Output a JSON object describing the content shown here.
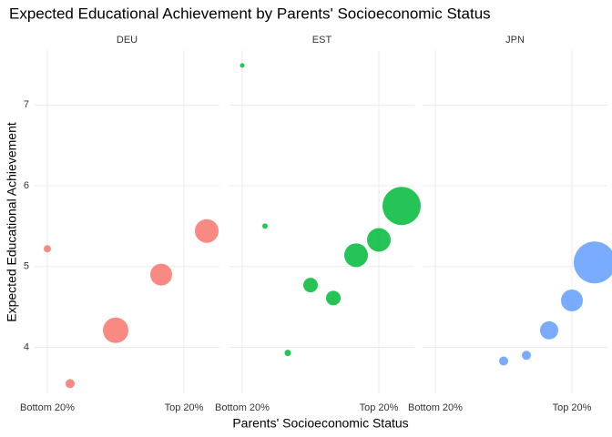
{
  "title": "Expected Educational Achievement by Parents' Socioeconomic Status",
  "x_label": "Parents' Socioeconomic Status",
  "y_label": "Expected Educational Achievement",
  "chart_data": [
    {
      "type": "scatter",
      "title": "DEU",
      "color": "#F8766D",
      "x": [
        1,
        2,
        4,
        6,
        8
      ],
      "values": [
        5.22,
        3.55,
        4.21,
        4.9,
        5.44
      ],
      "sizes": [
        4,
        5,
        14,
        12,
        13
      ],
      "xlim": [
        0.44,
        8.56
      ],
      "xticks": [
        {
          "value": 1,
          "label": "Bottom 20%"
        },
        {
          "value": 7,
          "label": "Top 20%"
        }
      ],
      "ylim": [
        3.43,
        7.68
      ],
      "yticks": [
        4,
        5,
        6,
        7
      ],
      "grid": true
    },
    {
      "type": "scatter",
      "title": "EST",
      "color": "#00BA38",
      "x": [
        1,
        2,
        3,
        4,
        5,
        6,
        7,
        8
      ],
      "values": [
        7.49,
        5.5,
        3.93,
        4.77,
        4.61,
        5.14,
        5.33,
        5.75
      ],
      "sizes": [
        2.5,
        3,
        3.5,
        8,
        8,
        13,
        13,
        21
      ],
      "xlim": [
        0.44,
        8.56
      ],
      "xticks": [
        {
          "value": 1,
          "label": "Bottom 20%"
        },
        {
          "value": 7,
          "label": "Top 20%"
        }
      ],
      "ylim": [
        3.43,
        7.68
      ],
      "yticks": [
        4,
        5,
        6,
        7
      ],
      "grid": true
    },
    {
      "type": "scatter",
      "title": "JPN",
      "color": "#619CFF",
      "x": [
        4,
        5,
        6,
        7,
        8
      ],
      "values": [
        3.83,
        3.9,
        4.21,
        4.58,
        5.05
      ],
      "sizes": [
        5,
        5,
        10,
        12,
        23
      ],
      "xlim": [
        0.44,
        8.56
      ],
      "xticks": [
        {
          "value": 1,
          "label": "Bottom 20%"
        },
        {
          "value": 7,
          "label": "Top 20%"
        }
      ],
      "ylim": [
        3.43,
        7.68
      ],
      "yticks": [
        4,
        5,
        6,
        7
      ],
      "grid": true
    }
  ]
}
